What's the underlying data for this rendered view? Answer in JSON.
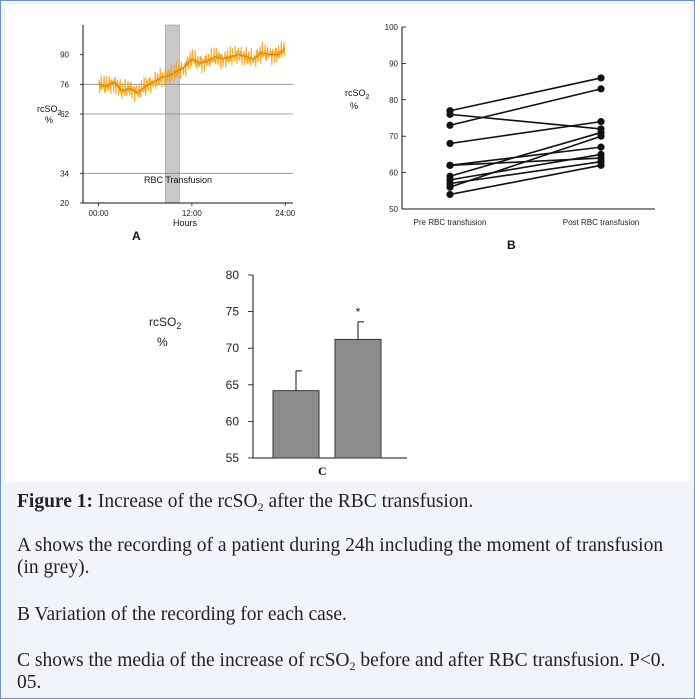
{
  "caption": {
    "figure_label": "Figure 1:",
    "title_pre": "Increase of the rcSO",
    "title_sub": "2",
    "title_post": " after the RBC transfusion.",
    "line_a": "A shows the recording of a patient during 24h including the moment of transfusion (in grey).",
    "line_b": "B Variation of the recording for each case.",
    "line_c_pre": "C shows the media of the increase of rcSO",
    "line_c_sub": "2",
    "line_c_post": " before and after RBC transfusion. P<0. 05."
  },
  "chart_data": [
    {
      "type": "line",
      "panel_label": "A",
      "xlabel": "Hours",
      "ylabel": "rcSO2",
      "ylabel_main": "rcSO",
      "ylabel_sub": "2",
      "ylabel_unit": "%",
      "x_ticks": [
        "00:00",
        "12:00",
        "24:00"
      ],
      "y_ticks": [
        20,
        34,
        62,
        76,
        90
      ],
      "ylim": [
        20,
        104
      ],
      "xlim": [
        -2,
        25
      ],
      "reference_lines": [
        34,
        62,
        76
      ],
      "transfusion_window": [
        8.6,
        10.4
      ],
      "annotation": "RBC Transfusion",
      "series": [
        {
          "x": [
            0,
            1,
            2,
            3,
            4,
            5,
            6,
            7,
            8,
            9,
            10,
            11,
            12,
            13,
            14,
            15,
            16,
            17,
            18,
            19,
            20,
            21,
            22,
            23,
            24
          ],
          "values": [
            76,
            75,
            77,
            73,
            74,
            72,
            75,
            77,
            79,
            80,
            82,
            84,
            88,
            86,
            87,
            89,
            88,
            89,
            90,
            89,
            88,
            91,
            90,
            90,
            93
          ]
        }
      ],
      "colors": {
        "trace": "#f2a41c",
        "window": "#c8c8c8",
        "ref": "#888888"
      }
    },
    {
      "type": "line",
      "panel_label": "B",
      "ylabel": "rcSO2",
      "ylabel_main": "rcSO",
      "ylabel_sub": "2",
      "ylabel_unit": "%",
      "categories": [
        "Pre RBC transfusion",
        "Post RBC transfusion"
      ],
      "y_ticks": [
        50,
        60,
        70,
        80,
        90,
        100
      ],
      "ylim": [
        50,
        100
      ],
      "series": [
        {
          "values": [
            77,
            86
          ]
        },
        {
          "values": [
            76,
            72
          ]
        },
        {
          "values": [
            73,
            83
          ]
        },
        {
          "values": [
            68,
            74
          ]
        },
        {
          "values": [
            62,
            64
          ]
        },
        {
          "values": [
            62,
            67
          ]
        },
        {
          "values": [
            59,
            71
          ]
        },
        {
          "values": [
            58,
            65
          ]
        },
        {
          "values": [
            56,
            70
          ]
        },
        {
          "values": [
            54,
            62
          ]
        },
        {
          "values": [
            57,
            63
          ]
        }
      ],
      "colors": {
        "line": "#111111"
      }
    },
    {
      "type": "bar",
      "panel_label": "C",
      "ylabel": "rcSO2",
      "ylabel_main": "rcSO",
      "ylabel_sub": "2",
      "ylabel_unit": "%",
      "categories": [
        "",
        ""
      ],
      "values": [
        64.2,
        71.2
      ],
      "error": [
        2.7,
        2.4
      ],
      "significance": [
        "",
        "*"
      ],
      "y_ticks": [
        55,
        60,
        65,
        70,
        75,
        80
      ],
      "ylim": [
        55,
        80
      ],
      "colors": {
        "bar": "#8c8c8c"
      }
    }
  ]
}
